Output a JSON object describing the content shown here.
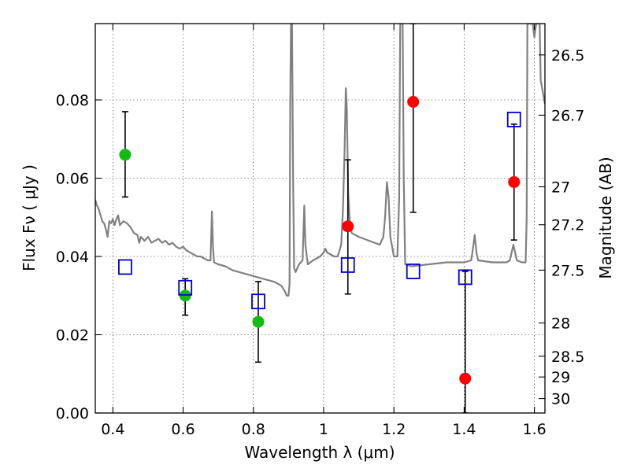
{
  "chart_data": {
    "type": "scatter",
    "xlabel": "Wavelength  λ (μm)",
    "ylabel": "Flux  Fν  ( μJy )",
    "ylabel_right": "Magnitude (AB)",
    "xlim": [
      0.35,
      1.63
    ],
    "ylim": [
      0.0,
      0.0995
    ],
    "x_ticks": [
      0.4,
      0.6,
      0.8,
      1.0,
      1.2,
      1.4,
      1.6
    ],
    "x_tick_labels": [
      "0.4",
      "0.6",
      "0.8",
      "1",
      "1.2",
      "1.4",
      "1.6"
    ],
    "y_ticks": [
      0.0,
      0.02,
      0.04,
      0.06,
      0.08
    ],
    "y_tick_labels": [
      "0.00",
      "0.02",
      "0.04",
      "0.06",
      "0.08"
    ],
    "right_ticks": [
      {
        "label": "26.5",
        "flux": 0.0915
      },
      {
        "label": "26.7",
        "flux": 0.0761
      },
      {
        "label": "27",
        "flux": 0.0578
      },
      {
        "label": "27.2",
        "flux": 0.0481
      },
      {
        "label": "27.5",
        "flux": 0.0365
      },
      {
        "label": "28",
        "flux": 0.023
      },
      {
        "label": "28.5",
        "flux": 0.0145
      },
      {
        "label": "29",
        "flux": 0.0092
      },
      {
        "label": "30",
        "flux": 0.0037
      }
    ],
    "grid": true,
    "colors": {
      "detection_blue": "#00ff00",
      "detection_green": "#11bb11",
      "detection_red": "#ff0000",
      "model_box": "#0000cc",
      "model_spectrum": "#808080",
      "errorbar": "#000000"
    },
    "series": [
      {
        "type": "scatter",
        "marker": "circle",
        "color": "#11bb11",
        "points": [
          {
            "x": 0.435,
            "y": 0.066,
            "ylo": 0.0552,
            "yhi": 0.077
          },
          {
            "x": 0.606,
            "y": 0.03,
            "ylo": 0.025,
            "yhi": 0.0343
          },
          {
            "x": 0.814,
            "y": 0.0233,
            "ylo": 0.013,
            "yhi": 0.0336
          }
        ]
      },
      {
        "type": "scatter",
        "marker": "circle",
        "color": "#ff0000",
        "points": [
          {
            "x": 1.069,
            "y": 0.0477,
            "ylo": 0.0304,
            "yhi": 0.0647
          },
          {
            "x": 1.255,
            "y": 0.0795,
            "ylo": 0.0513,
            "yhi": 0.0995
          },
          {
            "x": 1.403,
            "y": 0.0088,
            "ylo": 0.0,
            "yhi": 0.0362
          },
          {
            "x": 1.542,
            "y": 0.059,
            "ylo": 0.0442,
            "yhi": 0.0738
          }
        ]
      },
      {
        "type": "scatter",
        "marker": "open-square",
        "color": "#0000cc",
        "points": [
          {
            "x": 0.435,
            "y": 0.0373
          },
          {
            "x": 0.606,
            "y": 0.032
          },
          {
            "x": 0.814,
            "y": 0.0285
          },
          {
            "x": 1.069,
            "y": 0.0378
          },
          {
            "x": 1.255,
            "y": 0.0362
          },
          {
            "x": 1.403,
            "y": 0.0347
          },
          {
            "x": 1.542,
            "y": 0.075
          }
        ]
      },
      {
        "type": "line",
        "color": "#808080",
        "points": [
          [
            0.35,
            0.0545
          ],
          [
            0.355,
            0.053
          ],
          [
            0.36,
            0.052
          ],
          [
            0.365,
            0.0505
          ],
          [
            0.37,
            0.049
          ],
          [
            0.375,
            0.0485
          ],
          [
            0.38,
            0.047
          ],
          [
            0.385,
            0.045
          ],
          [
            0.39,
            0.049
          ],
          [
            0.395,
            0.0485
          ],
          [
            0.4,
            0.0495
          ],
          [
            0.405,
            0.048
          ],
          [
            0.41,
            0.0495
          ],
          [
            0.415,
            0.0505
          ],
          [
            0.42,
            0.048
          ],
          [
            0.43,
            0.049
          ],
          [
            0.44,
            0.0485
          ],
          [
            0.45,
            0.0475
          ],
          [
            0.46,
            0.046
          ],
          [
            0.47,
            0.0455
          ],
          [
            0.475,
            0.0435
          ],
          [
            0.48,
            0.045
          ],
          [
            0.49,
            0.044
          ],
          [
            0.5,
            0.045
          ],
          [
            0.51,
            0.0435
          ],
          [
            0.52,
            0.044
          ],
          [
            0.53,
            0.0445
          ],
          [
            0.54,
            0.0435
          ],
          [
            0.55,
            0.044
          ],
          [
            0.56,
            0.043
          ],
          [
            0.57,
            0.0435
          ],
          [
            0.58,
            0.0425
          ],
          [
            0.59,
            0.042
          ],
          [
            0.6,
            0.0425
          ],
          [
            0.61,
            0.0415
          ],
          [
            0.62,
            0.041
          ],
          [
            0.63,
            0.0405
          ],
          [
            0.64,
            0.04
          ],
          [
            0.65,
            0.04
          ],
          [
            0.66,
            0.0395
          ],
          [
            0.67,
            0.039
          ],
          [
            0.678,
            0.039
          ],
          [
            0.68,
            0.045
          ],
          [
            0.682,
            0.0515
          ],
          [
            0.685,
            0.043
          ],
          [
            0.688,
            0.0385
          ],
          [
            0.7,
            0.038
          ],
          [
            0.72,
            0.0375
          ],
          [
            0.74,
            0.0365
          ],
          [
            0.76,
            0.036
          ],
          [
            0.78,
            0.0355
          ],
          [
            0.8,
            0.035
          ],
          [
            0.82,
            0.0345
          ],
          [
            0.84,
            0.034
          ],
          [
            0.86,
            0.0335
          ],
          [
            0.88,
            0.0325
          ],
          [
            0.89,
            0.031
          ],
          [
            0.895,
            0.03
          ],
          [
            0.9,
            0.03
          ],
          [
            0.903,
            0.033
          ],
          [
            0.905,
            0.08
          ],
          [
            0.907,
            0.0995
          ],
          [
            0.91,
            0.0995
          ],
          [
            0.913,
            0.06
          ],
          [
            0.916,
            0.037
          ],
          [
            0.92,
            0.036
          ],
          [
            0.93,
            0.038
          ],
          [
            0.94,
            0.039
          ],
          [
            0.945,
            0.053
          ],
          [
            0.948,
            0.043
          ],
          [
            0.955,
            0.038
          ],
          [
            0.97,
            0.039
          ],
          [
            0.99,
            0.04
          ],
          [
            1.0,
            0.041
          ],
          [
            1.005,
            0.042
          ],
          [
            1.01,
            0.041
          ],
          [
            1.02,
            0.0405
          ],
          [
            1.03,
            0.04
          ],
          [
            1.04,
            0.04
          ],
          [
            1.05,
            0.043
          ],
          [
            1.055,
            0.052
          ],
          [
            1.06,
            0.068
          ],
          [
            1.063,
            0.083
          ],
          [
            1.066,
            0.078
          ],
          [
            1.07,
            0.056
          ],
          [
            1.075,
            0.048
          ],
          [
            1.08,
            0.046
          ],
          [
            1.1,
            0.045
          ],
          [
            1.13,
            0.044
          ],
          [
            1.16,
            0.043
          ],
          [
            1.17,
            0.045
          ],
          [
            1.175,
            0.05
          ],
          [
            1.18,
            0.059
          ],
          [
            1.185,
            0.055
          ],
          [
            1.19,
            0.045
          ],
          [
            1.2,
            0.04
          ],
          [
            1.21,
            0.04
          ],
          [
            1.215,
            0.055
          ],
          [
            1.218,
            0.0995
          ],
          [
            1.225,
            0.0995
          ],
          [
            1.228,
            0.06
          ],
          [
            1.232,
            0.038
          ],
          [
            1.25,
            0.0375
          ],
          [
            1.3,
            0.038
          ],
          [
            1.35,
            0.0385
          ],
          [
            1.4,
            0.0385
          ],
          [
            1.42,
            0.039
          ],
          [
            1.425,
            0.042
          ],
          [
            1.43,
            0.0455
          ],
          [
            1.435,
            0.041
          ],
          [
            1.44,
            0.039
          ],
          [
            1.48,
            0.0385
          ],
          [
            1.52,
            0.0385
          ],
          [
            1.53,
            0.039
          ],
          [
            1.54,
            0.043
          ],
          [
            1.545,
            0.041
          ],
          [
            1.55,
            0.039
          ],
          [
            1.565,
            0.0385
          ],
          [
            1.575,
            0.0385
          ],
          [
            1.578,
            0.05
          ],
          [
            1.58,
            0.0995
          ],
          [
            1.595,
            0.0995
          ],
          [
            1.6,
            0.096
          ],
          [
            1.605,
            0.0995
          ],
          [
            1.615,
            0.0995
          ],
          [
            1.618,
            0.085
          ],
          [
            1.63,
            0.079
          ]
        ]
      }
    ]
  }
}
